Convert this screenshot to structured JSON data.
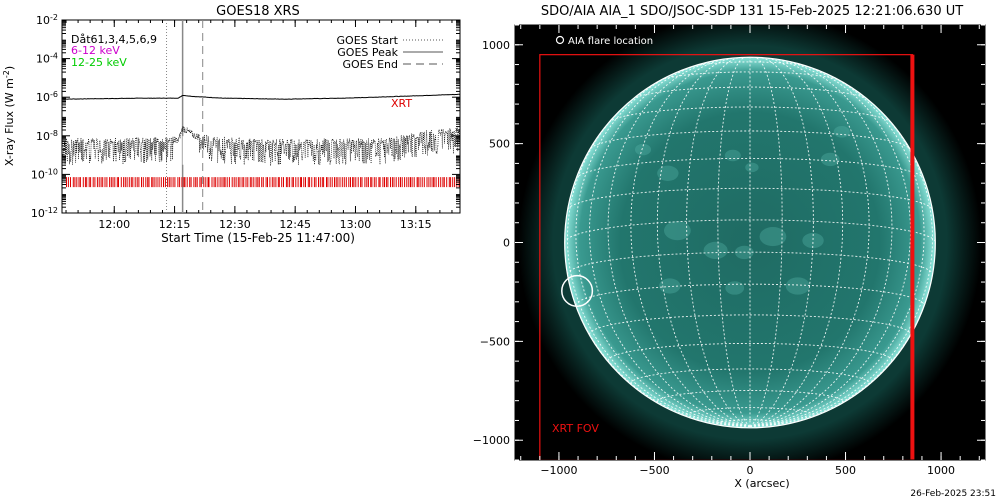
{
  "footer_timestamp": "26-Feb-2025 23:51",
  "chart_data": [
    {
      "type": "line",
      "title": "GOES18 XRS",
      "xlabel": "Start Time (15-Feb-25 11:47:00)",
      "ylabel_main": "X-ray Flux (W m",
      "ylabel_sup": "-2",
      "ylabel_end": ")",
      "xlim_minutes": [
        0,
        99
      ],
      "x_ticks": [
        {
          "minute": 13,
          "label": "12:00"
        },
        {
          "minute": 28,
          "label": "12:15"
        },
        {
          "minute": 43,
          "label": "12:30"
        },
        {
          "minute": 58,
          "label": "12:45"
        },
        {
          "minute": 73,
          "label": "13:00"
        },
        {
          "minute": 88,
          "label": "13:15"
        }
      ],
      "ylim_log10": [
        -12,
        -2
      ],
      "y_scale": "log",
      "y_ticks": [
        {
          "exp": -2,
          "base": "10",
          "sup": "-2"
        },
        {
          "exp": -4,
          "base": "10",
          "sup": "-4"
        },
        {
          "exp": -6,
          "base": "10",
          "sup": "-6"
        },
        {
          "exp": -8,
          "base": "10",
          "sup": "-8"
        },
        {
          "exp": -10,
          "base": "10",
          "sup": "-10"
        },
        {
          "exp": -12,
          "base": "10",
          "sup": "-12"
        }
      ],
      "channels_label": "Dåt61,3,4,5,6,9",
      "channels": [
        {
          "name": "6-12 keV",
          "color": "#cc00cc"
        },
        {
          "name": "12-25 keV",
          "color": "#00cc00"
        }
      ],
      "legend_placement": "top-right",
      "legend": [
        {
          "name": "GOES Start",
          "style": "dotted"
        },
        {
          "name": "GOES Peak",
          "style": "solid"
        },
        {
          "name": "GOES End",
          "style": "dashed"
        }
      ],
      "event_lines_minutes": {
        "start": 26,
        "peak": 30,
        "end": 35
      },
      "series": [
        {
          "name": "long",
          "minutes": [
            0,
            20,
            29,
            30,
            32,
            40,
            55,
            70,
            85,
            99
          ],
          "log10_flux": [
            -6.1,
            -6.05,
            -6.05,
            -5.9,
            -5.95,
            -6.05,
            -6.1,
            -6.05,
            -5.95,
            -5.85
          ]
        },
        {
          "name": "short",
          "minutes": [
            0,
            20,
            29,
            30,
            33,
            38,
            50,
            70,
            80,
            85,
            90,
            99
          ],
          "log10_flux": [
            -8.3,
            -8.25,
            -8.2,
            -7.6,
            -8.0,
            -8.2,
            -8.35,
            -8.3,
            -8.3,
            -8.1,
            -7.9,
            -7.7
          ]
        }
      ],
      "xrt_label": "XRT",
      "xrt_color": "#dd0000",
      "xrt_level_log10": -10.4
    },
    {
      "type": "heatmap",
      "title": "SDO/AIA AIA_1 SDO/JSOC-SDP 131 15-Feb-2025 12:21:06.630 UT",
      "xlabel": "X (arcsec)",
      "ylabel": "",
      "xlim": [
        -1230,
        1230
      ],
      "ylim": [
        -1100,
        1100
      ],
      "x_ticks": [
        -1000,
        -500,
        0,
        500,
        1000
      ],
      "y_ticks": [
        -1000,
        -500,
        0,
        500,
        1000
      ],
      "solar_radius_arcsec": 970,
      "flare_marker_label": "AIA flare location",
      "flare_location_arcsec": [
        -905,
        -245
      ],
      "xrt_fov_label": "XRT FOV",
      "xrt_fov_arcsec": {
        "x0": -1100,
        "x1": 850,
        "y0": -1100,
        "y1": 950
      },
      "colors": {
        "disk": "#1f6f68",
        "limb": "#8fe6dc",
        "grid": "#ffffff",
        "fov": "#ee1111"
      }
    }
  ]
}
